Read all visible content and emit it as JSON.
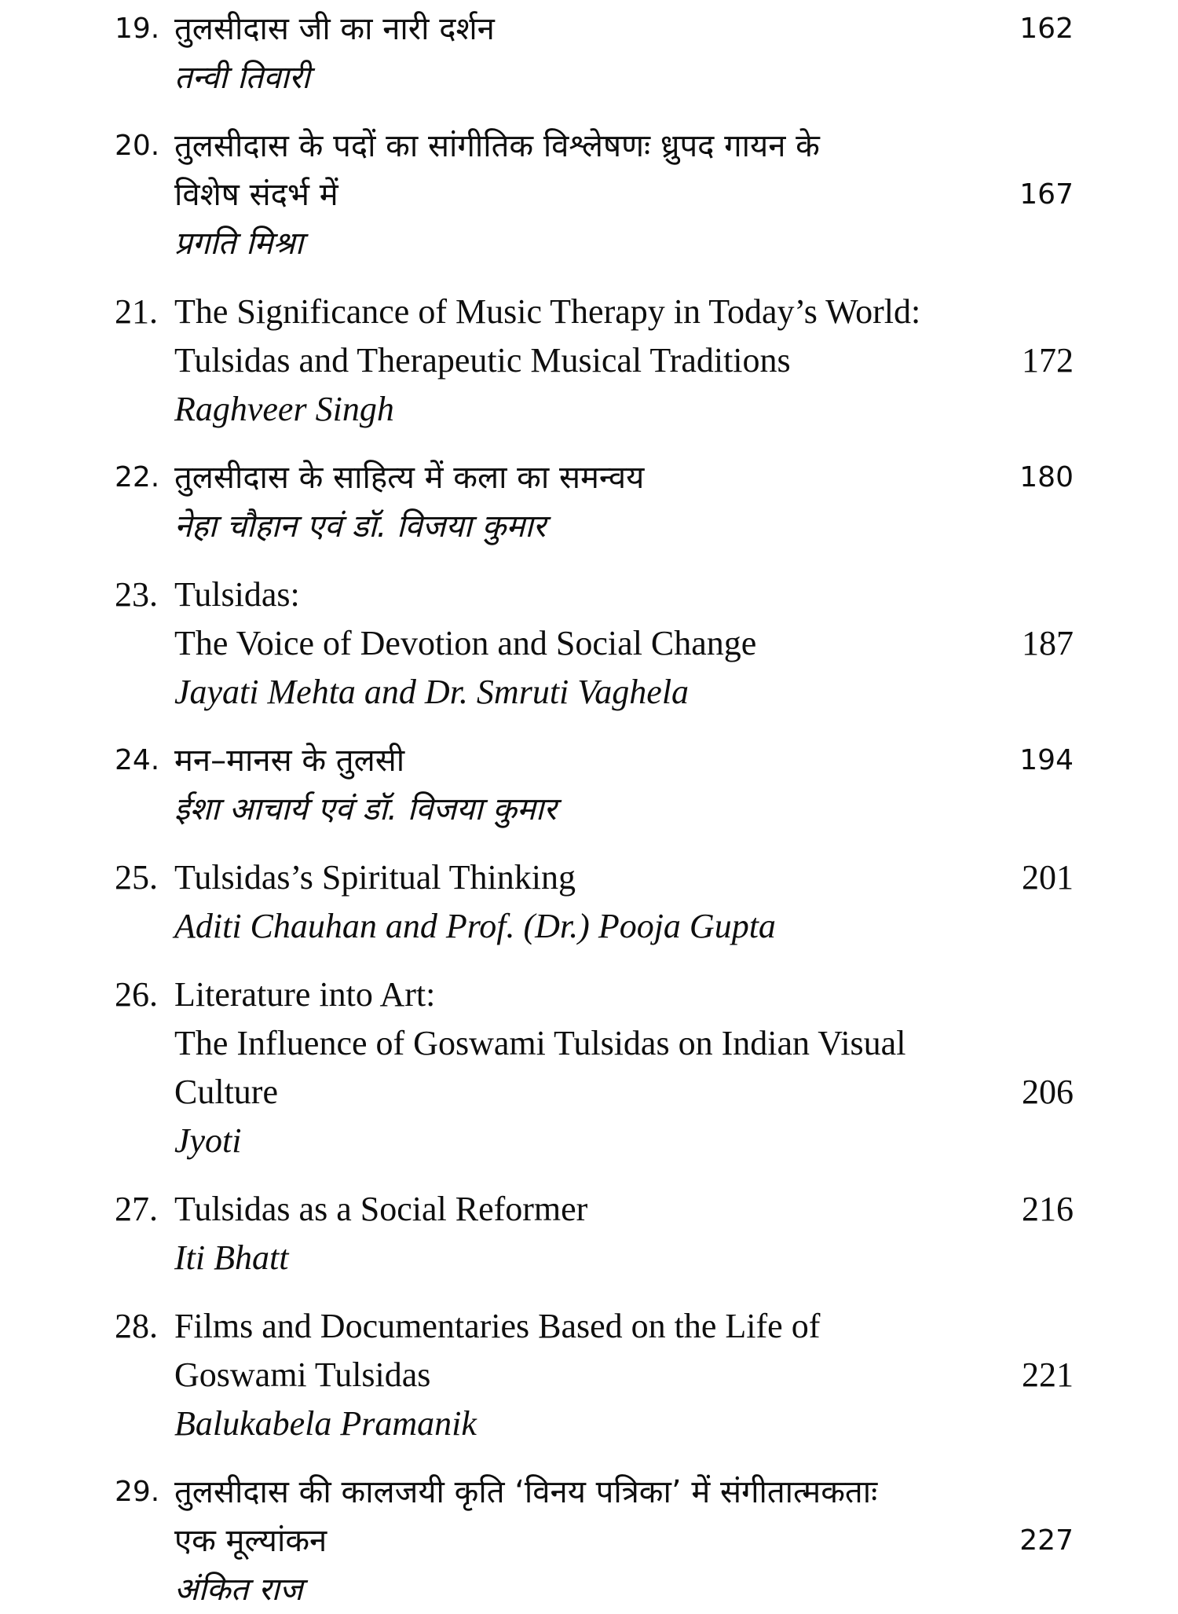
{
  "page": {
    "kind": "book-table-of-contents-scan",
    "background_color": "#ffffff",
    "text_color": "#0e0e0e"
  },
  "entries": [
    {
      "number": "19.",
      "title": "तुलसीदास जी का नारी दर्शन",
      "author": "तन्वी तिवारी",
      "page": "162",
      "script": "hindi"
    },
    {
      "number": "20.",
      "title": "तुलसीदास के पदों का सांगीतिक विश्लेषणः ध्रुपद गायन के\nविशेष संदर्भ में",
      "author": "प्रगति मिश्रा",
      "page": "167",
      "script": "hindi"
    },
    {
      "number": "21.",
      "title": "The Significance of Music Therapy in Today’s World:\nTulsidas and Therapeutic Musical Traditions",
      "author": "Raghveer Singh",
      "page": "172",
      "script": "english"
    },
    {
      "number": "22.",
      "title": "तुलसीदास के साहित्य में कला का समन्वय",
      "author": "नेहा चौहान एवं डॉ. विजया कुमार",
      "page": "180",
      "script": "hindi"
    },
    {
      "number": "23.",
      "title": "Tulsidas:\nThe Voice of Devotion and Social Change",
      "author": "Jayati Mehta and Dr. Smruti Vaghela",
      "page": "187",
      "script": "english"
    },
    {
      "number": "24.",
      "title": "मन–मानस के तुलसी",
      "author": "ईशा आचार्य एवं डॉ. विजया कुमार",
      "page": "194",
      "script": "hindi"
    },
    {
      "number": "25.",
      "title": "Tulsidas’s Spiritual Thinking",
      "author": "Aditi Chauhan and Prof. (Dr.) Pooja Gupta",
      "page": "201",
      "script": "english"
    },
    {
      "number": "26.",
      "title": "Literature into Art:\nThe Influence of Goswami Tulsidas on Indian Visual Culture",
      "author": "Jyoti",
      "page": "206",
      "script": "english"
    },
    {
      "number": "27.",
      "title": "Tulsidas as a Social Reformer",
      "author": "Iti Bhatt",
      "page": "216",
      "script": "english"
    },
    {
      "number": "28.",
      "title": "Films and Documentaries Based on the Life of\nGoswami Tulsidas",
      "author": "Balukabela Pramanik",
      "page": "221",
      "script": "english"
    },
    {
      "number": "29.",
      "title": "तुलसीदास की कालजयी कृति ‘विनय पत्रिका’ में संगीतात्मकताः\nएक मूल्यांकन",
      "author": "अंकित राज",
      "page": "227",
      "script": "hindi"
    }
  ]
}
